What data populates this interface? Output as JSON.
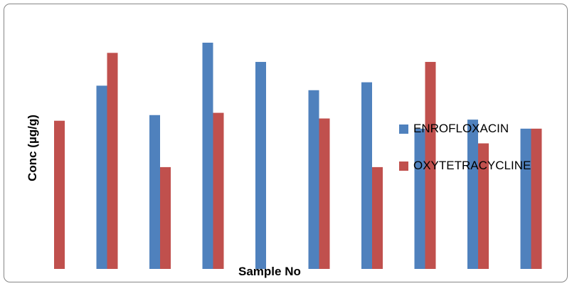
{
  "chart_data": {
    "type": "bar",
    "xlabel": "Sample No",
    "ylabel": "Conc (µg/g)",
    "categories": [
      "",
      "",
      "",
      "",
      "",
      "",
      "",
      "",
      "",
      ""
    ],
    "ylim": [
      0,
      100
    ],
    "grid": false,
    "legend_position": "right",
    "series": [
      {
        "name": "ENROFLOXACIN",
        "color": "#4f81bd",
        "values": [
          null,
          81,
          68,
          100,
          91.5,
          79,
          82.5,
          62,
          66,
          62
        ]
      },
      {
        "name": "OXYTETRACYCLINE",
        "color": "#c0504d",
        "values": [
          65.5,
          95.5,
          45,
          69,
          null,
          66.5,
          45,
          91.5,
          55.5,
          62
        ]
      }
    ]
  }
}
